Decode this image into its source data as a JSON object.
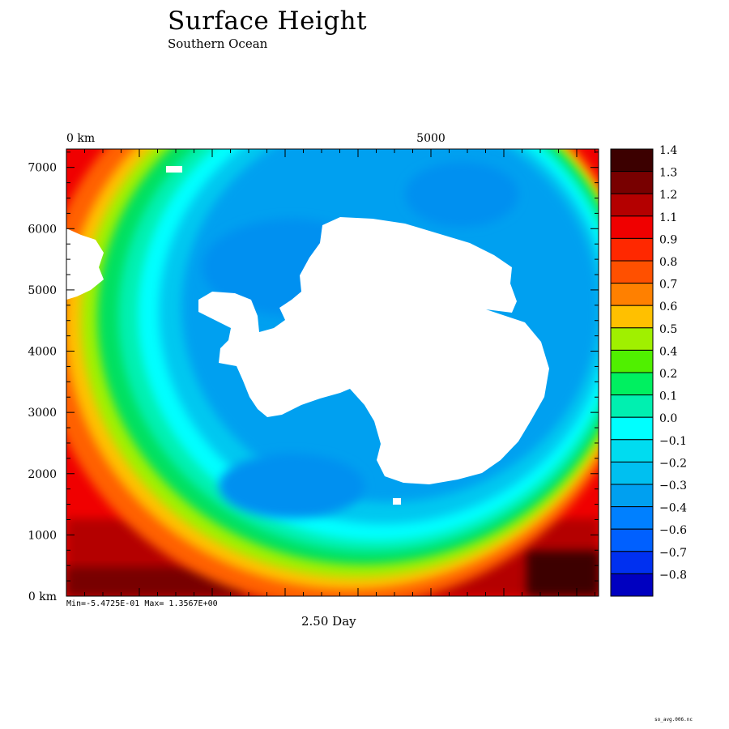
{
  "title": "Surface Height",
  "subtitle": "Southern Ocean",
  "time_label": "2.50 Day",
  "minmax_label": "Min=-5.4725E-01  Max= 1.3567E+00",
  "file_label": "so_avg.006.nc",
  "colors": {
    "land": "#ffffff",
    "ocean_far": "#00aaff"
  },
  "chart_data": {
    "type": "heatmap",
    "title": "Surface Height",
    "subtitle": "Southern Ocean",
    "x_axis": {
      "ticks": [
        {
          "value": 0,
          "label": "0 km"
        },
        {
          "value": 5000,
          "label": "5000"
        }
      ],
      "range": [
        0,
        7300
      ]
    },
    "y_axis": {
      "ticks": [
        {
          "value": 0,
          "label": "0 km"
        },
        {
          "value": 1000,
          "label": "1000"
        },
        {
          "value": 2000,
          "label": "2000"
        },
        {
          "value": 3000,
          "label": "3000"
        },
        {
          "value": 4000,
          "label": "4000"
        },
        {
          "value": 5000,
          "label": "5000"
        },
        {
          "value": 6000,
          "label": "6000"
        },
        {
          "value": 7000,
          "label": "7000"
        }
      ],
      "range": [
        0,
        7300
      ]
    },
    "min": -0.54725,
    "max": 1.3567,
    "colorbar": [
      {
        "label": "1.4",
        "color": "#3c0000"
      },
      {
        "label": "1.3",
        "color": "#780000"
      },
      {
        "label": "1.2",
        "color": "#b40000"
      },
      {
        "label": "1.1",
        "color": "#f00000"
      },
      {
        "label": "0.9",
        "color": "#ff2800"
      },
      {
        "label": "0.8",
        "color": "#ff5000"
      },
      {
        "label": "0.7",
        "color": "#ff8000"
      },
      {
        "label": "0.6",
        "color": "#ffc000"
      },
      {
        "label": "0.5",
        "color": "#a0f000"
      },
      {
        "label": "0.4",
        "color": "#50f000"
      },
      {
        "label": "0.2",
        "color": "#00f060"
      },
      {
        "label": "0.1",
        "color": "#00f0b0"
      },
      {
        "label": "0.0",
        "color": "#00ffff"
      },
      {
        "label": "-0.1",
        "color": "#00dcf0"
      },
      {
        "label": "-0.2",
        "color": "#00c0f0"
      },
      {
        "label": "-0.3",
        "color": "#00a0f0"
      },
      {
        "label": "-0.4",
        "color": "#0080ff"
      },
      {
        "label": "-0.6",
        "color": "#0060ff"
      },
      {
        "label": "-0.7",
        "color": "#0030f0"
      },
      {
        "label": "-0.8",
        "color": "#0000c0"
      }
    ]
  }
}
